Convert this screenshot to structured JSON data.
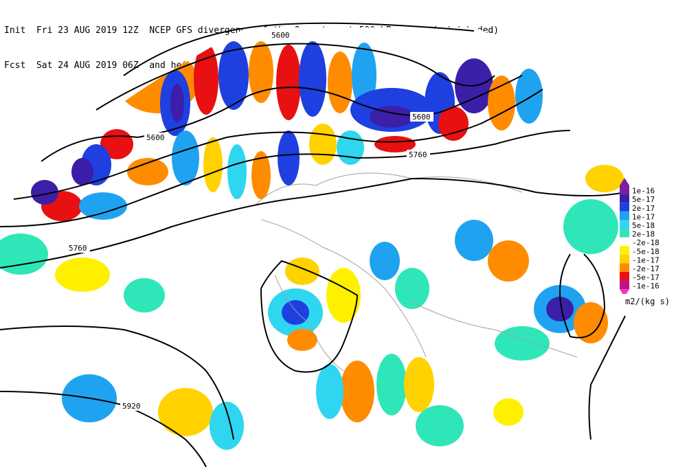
{
  "header": {
    "init_prefix": "Init",
    "init_time": "Fri 23 AUG 2019 12Z",
    "fcst_prefix": "Fcst",
    "fcst_time": "Sat 24 AUG 2019 06Z",
    "title_line1": "NCEP GFS divergence of the Q-vector at 500 hPa, smoothed (shaded)",
    "title_line2": "and height (contours)"
  },
  "legend": {
    "units": "m2/(kg s)",
    "levels": [
      {
        "label": "1e-16",
        "color": "#7b1fa2"
      },
      {
        "label": "5e-17",
        "color": "#3b1fa8"
      },
      {
        "label": "2e-17",
        "color": "#1e40e0"
      },
      {
        "label": "1e-17",
        "color": "#1fa3f0"
      },
      {
        "label": "5e-18",
        "color": "#2fd6f0"
      },
      {
        "label": "2e-18",
        "color": "#2fe6b8"
      },
      {
        "label": "-2e-18",
        "color": "#ffffff"
      },
      {
        "label": "-5e-18",
        "color": "#fff000"
      },
      {
        "label": "-1e-17",
        "color": "#ffd200"
      },
      {
        "label": "-2e-17",
        "color": "#ff8c00"
      },
      {
        "label": "-5e-17",
        "color": "#e81010"
      },
      {
        "label": "-1e-16",
        "color": "#c0108a"
      }
    ],
    "bottom_arrow_color": "#ff30c0"
  },
  "contours": {
    "labels": [
      "5600",
      "5600",
      "5600",
      "5760",
      "5760",
      "5920"
    ]
  },
  "colors": {
    "coast": "#a0a0a0",
    "contour": "#000000",
    "background": "#ffffff"
  }
}
